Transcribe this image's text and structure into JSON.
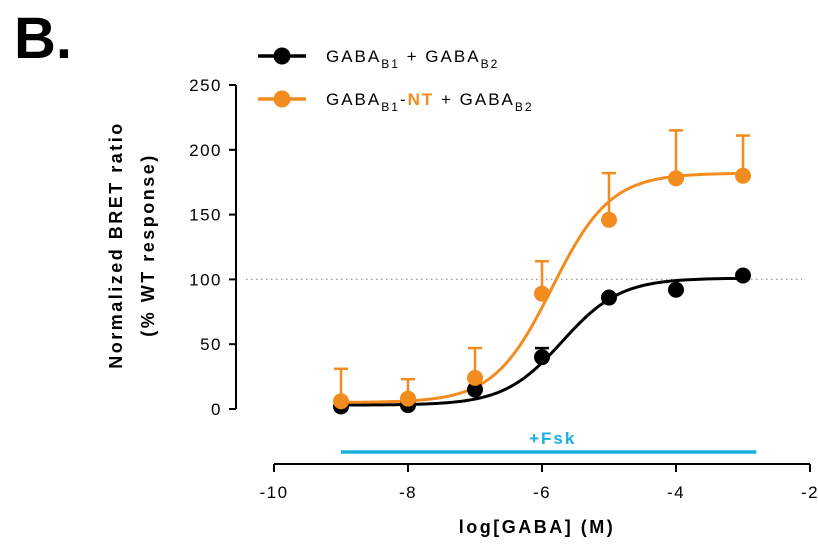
{
  "panel_label": "B.",
  "colors": {
    "wt": "#000000",
    "nt": "#F28C1E",
    "fsk": "#1AB0E0",
    "reference": "#9a9a9a"
  },
  "chart_data": {
    "type": "line",
    "xlabel": "log[GABA] (M)",
    "ylabel_line1": "Normalized BRET ratio",
    "ylabel_line2": "(% WT response)",
    "xlim": [
      -10,
      -2
    ],
    "ylim": [
      0,
      250
    ],
    "xticks": [
      -10,
      -8,
      -6,
      -4,
      -2
    ],
    "yticks": [
      0,
      50,
      100,
      150,
      200,
      250
    ],
    "reference_line": 100,
    "annotation": {
      "text": "+Fsk",
      "x_from": -9,
      "x_to": -2.8
    },
    "legend_position": "top-left",
    "series": [
      {
        "name": "GABA_B1 + GABA_B2",
        "legend_parts": [
          {
            "t": "GABA",
            "sub": false,
            "hl": false
          },
          {
            "t": "B1",
            "sub": true,
            "hl": false
          },
          {
            "t": " + GABA",
            "sub": false,
            "hl": false
          },
          {
            "t": "B2",
            "sub": true,
            "hl": false
          }
        ],
        "color_key": "wt",
        "x": [
          -9,
          -8,
          -7,
          -6,
          -5,
          -4,
          -3
        ],
        "y": [
          2,
          3,
          15,
          40,
          86,
          92,
          103
        ],
        "err": [
          0,
          0,
          0,
          7,
          0,
          0,
          0
        ],
        "fit": {
          "bottom": 3,
          "top": 101,
          "logEC50": -5.7,
          "hill": 1.0
        }
      },
      {
        "name": "GABA_B1-NT + GABA_B2",
        "legend_parts": [
          {
            "t": "GABA",
            "sub": false,
            "hl": false
          },
          {
            "t": "B1",
            "sub": true,
            "hl": false
          },
          {
            "t": "-",
            "sub": false,
            "hl": false
          },
          {
            "t": "NT",
            "sub": false,
            "hl": true
          },
          {
            "t": " + GABA",
            "sub": false,
            "hl": false
          },
          {
            "t": "B2",
            "sub": true,
            "hl": false
          }
        ],
        "color_key": "nt",
        "x": [
          -9,
          -8,
          -7,
          -6,
          -5,
          -4,
          -3
        ],
        "y": [
          6,
          8,
          24,
          89,
          146,
          178,
          180
        ],
        "err": [
          25,
          15,
          23,
          25,
          36,
          37,
          31
        ],
        "fit": {
          "bottom": 5,
          "top": 182,
          "logEC50": -5.85,
          "hill": 1.0
        }
      }
    ]
  }
}
